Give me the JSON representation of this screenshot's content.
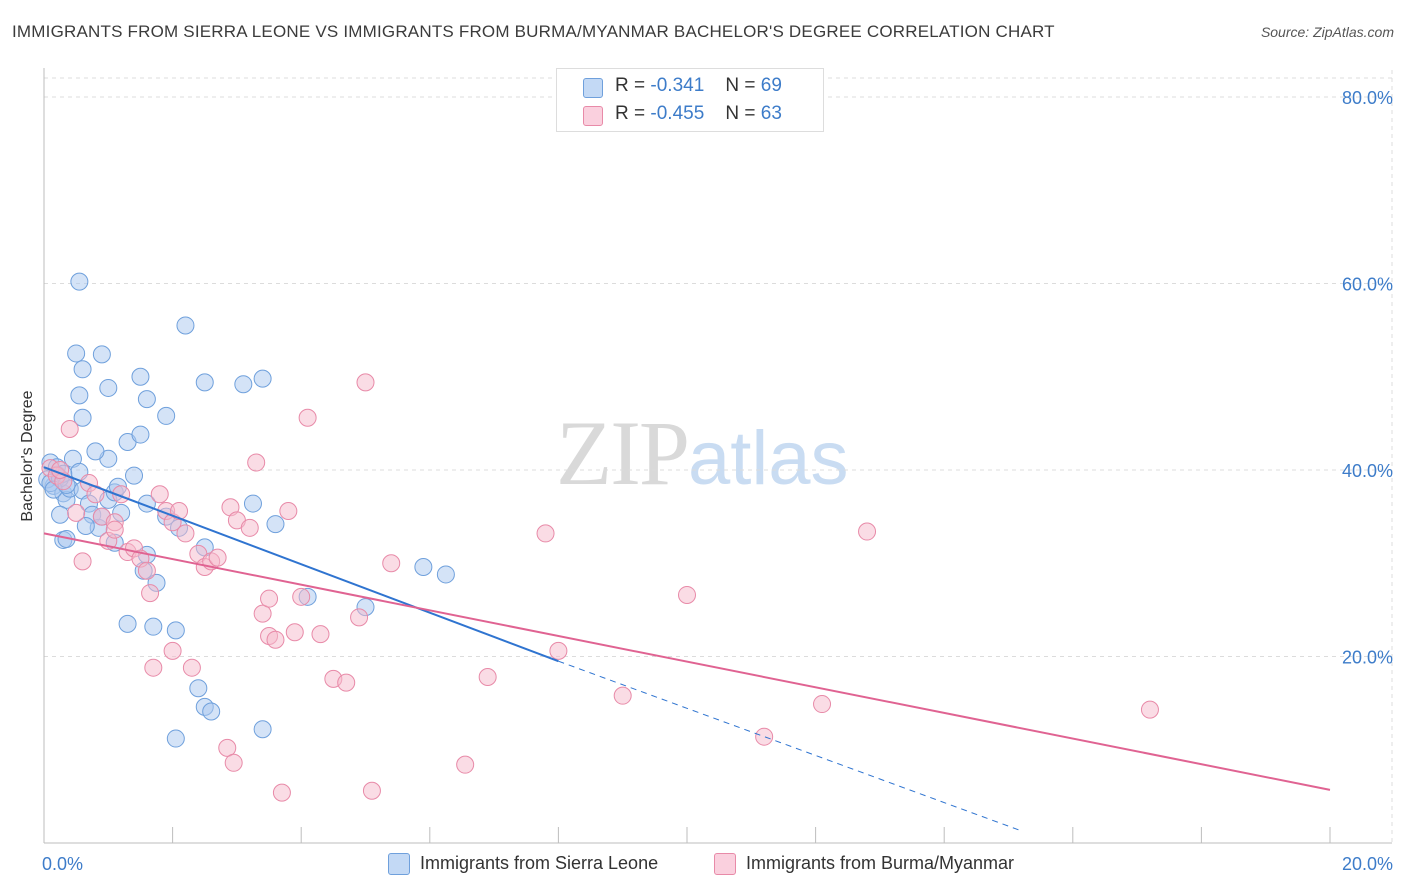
{
  "title": "IMMIGRANTS FROM SIERRA LEONE VS IMMIGRANTS FROM BURMA/MYANMAR BACHELOR'S DEGREE CORRELATION CHART",
  "source": "Source: ZipAtlas.com",
  "watermark": {
    "zip": "ZIP",
    "atlas": "atlas"
  },
  "legend": {
    "rows": [
      {
        "r_label": "R =",
        "r_value": "-0.341",
        "n_label": "N =",
        "n_value": "69",
        "color": "#a9c8f0"
      },
      {
        "r_label": "R =",
        "r_value": "-0.455",
        "n_label": "N =",
        "n_value": "63",
        "color": "#f6b9cc"
      }
    ]
  },
  "bottom_legend": [
    {
      "label": "Immigrants from Sierra Leone",
      "color": "#a9c8f0"
    },
    {
      "label": "Immigrants from Burma/Myanmar",
      "color": "#f6b9cc"
    }
  ],
  "chart_data": {
    "type": "scatter",
    "title": "IMMIGRANTS FROM SIERRA LEONE VS IMMIGRANTS FROM BURMA/MYANMAR BACHELOR'S DEGREE CORRELATION CHART",
    "xlabel": "",
    "ylabel": "Bachelor's Degree",
    "xlim": [
      0,
      20
    ],
    "ylim": [
      0,
      80
    ],
    "x_tick_labels": [
      "0.0%",
      "20.0%"
    ],
    "y_ticks": [
      20,
      40,
      60,
      80
    ],
    "y_tick_labels": [
      "20.0%",
      "40.0%",
      "60.0%",
      "80.0%"
    ],
    "grid": true,
    "series": [
      {
        "name": "Immigrants from Sierra Leone",
        "color": "#a9c8f0",
        "stroke": "#6fa0dc",
        "trend": {
          "x": [
            0.0,
            8.0
          ],
          "y": [
            40.3,
            19.5
          ],
          "dashed_to": [
            15.2,
            1.3
          ],
          "color": "#2f74d0"
        },
        "points": [
          [
            0.1,
            40.8
          ],
          [
            0.15,
            38.3
          ],
          [
            0.2,
            39.5
          ],
          [
            0.3,
            37.5
          ],
          [
            0.35,
            36.8
          ],
          [
            0.25,
            35.2
          ],
          [
            0.3,
            32.5
          ],
          [
            0.4,
            38.0
          ],
          [
            0.45,
            41.2
          ],
          [
            0.55,
            39.8
          ],
          [
            0.6,
            37.8
          ],
          [
            0.7,
            36.4
          ],
          [
            0.75,
            35.2
          ],
          [
            0.85,
            33.8
          ],
          [
            0.9,
            35.0
          ],
          [
            1.0,
            36.8
          ],
          [
            1.1,
            37.6
          ],
          [
            1.15,
            38.2
          ],
          [
            1.2,
            35.4
          ],
          [
            0.5,
            52.5
          ],
          [
            0.6,
            50.8
          ],
          [
            0.55,
            48.0
          ],
          [
            0.6,
            45.6
          ],
          [
            0.55,
            60.2
          ],
          [
            0.9,
            52.4
          ],
          [
            1.0,
            48.8
          ],
          [
            1.5,
            50.0
          ],
          [
            1.6,
            47.6
          ],
          [
            1.3,
            43.0
          ],
          [
            1.5,
            43.8
          ],
          [
            1.9,
            45.8
          ],
          [
            2.2,
            55.5
          ],
          [
            2.5,
            49.4
          ],
          [
            3.1,
            49.2
          ],
          [
            3.4,
            49.8
          ],
          [
            1.0,
            41.2
          ],
          [
            0.8,
            42.0
          ],
          [
            1.4,
            39.4
          ],
          [
            1.6,
            36.4
          ],
          [
            1.9,
            35.0
          ],
          [
            2.1,
            33.8
          ],
          [
            2.5,
            31.7
          ],
          [
            3.25,
            36.4
          ],
          [
            3.6,
            34.2
          ],
          [
            4.1,
            26.4
          ],
          [
            1.1,
            32.2
          ],
          [
            1.6,
            30.9
          ],
          [
            1.55,
            29.2
          ],
          [
            1.75,
            27.9
          ],
          [
            0.35,
            32.6
          ],
          [
            0.65,
            34.0
          ],
          [
            1.3,
            23.5
          ],
          [
            1.7,
            23.2
          ],
          [
            2.05,
            22.8
          ],
          [
            2.4,
            16.6
          ],
          [
            2.5,
            14.6
          ],
          [
            2.6,
            14.1
          ],
          [
            2.05,
            11.2
          ],
          [
            3.4,
            12.2
          ],
          [
            5.0,
            25.3
          ],
          [
            5.9,
            29.6
          ],
          [
            6.25,
            28.8
          ],
          [
            0.05,
            39.0
          ],
          [
            0.1,
            38.6
          ],
          [
            0.2,
            40.3
          ],
          [
            0.25,
            39.1
          ],
          [
            0.15,
            37.9
          ],
          [
            0.3,
            39.6
          ],
          [
            0.35,
            38.4
          ]
        ]
      },
      {
        "name": "Immigrants from Burma/Myanmar",
        "color": "#f6b9cc",
        "stroke": "#e88aa8",
        "trend": {
          "x": [
            0.0,
            20.0
          ],
          "y": [
            33.2,
            5.7
          ],
          "color": "#e06392"
        },
        "points": [
          [
            0.1,
            40.2
          ],
          [
            0.2,
            39.4
          ],
          [
            0.3,
            38.8
          ],
          [
            0.25,
            40.0
          ],
          [
            0.4,
            44.4
          ],
          [
            0.5,
            35.4
          ],
          [
            0.6,
            30.2
          ],
          [
            0.7,
            38.6
          ],
          [
            0.8,
            37.4
          ],
          [
            0.9,
            35.0
          ],
          [
            1.0,
            32.4
          ],
          [
            1.1,
            34.4
          ],
          [
            1.2,
            37.4
          ],
          [
            1.3,
            31.2
          ],
          [
            1.4,
            31.6
          ],
          [
            1.5,
            30.5
          ],
          [
            1.6,
            29.2
          ],
          [
            1.65,
            26.8
          ],
          [
            1.8,
            37.4
          ],
          [
            1.9,
            35.6
          ],
          [
            2.0,
            34.4
          ],
          [
            2.1,
            35.6
          ],
          [
            2.2,
            33.2
          ],
          [
            2.4,
            31.0
          ],
          [
            2.5,
            29.6
          ],
          [
            2.6,
            30.2
          ],
          [
            2.7,
            30.6
          ],
          [
            2.9,
            36.0
          ],
          [
            3.0,
            34.6
          ],
          [
            3.2,
            33.8
          ],
          [
            3.3,
            40.8
          ],
          [
            3.4,
            24.6
          ],
          [
            3.5,
            22.2
          ],
          [
            3.6,
            21.8
          ],
          [
            3.8,
            35.6
          ],
          [
            3.9,
            22.6
          ],
          [
            4.0,
            26.4
          ],
          [
            4.1,
            45.6
          ],
          [
            4.3,
            22.4
          ],
          [
            4.5,
            17.6
          ],
          [
            4.7,
            17.2
          ],
          [
            4.9,
            24.2
          ],
          [
            5.0,
            49.4
          ],
          [
            5.4,
            30.0
          ],
          [
            6.9,
            17.8
          ],
          [
            7.8,
            33.2
          ],
          [
            8.0,
            20.6
          ],
          [
            9.0,
            15.8
          ],
          [
            10.0,
            26.6
          ],
          [
            11.2,
            11.4
          ],
          [
            12.1,
            14.9
          ],
          [
            12.8,
            33.4
          ],
          [
            17.2,
            14.3
          ],
          [
            1.7,
            18.8
          ],
          [
            2.3,
            18.8
          ],
          [
            2.0,
            20.6
          ],
          [
            2.85,
            10.2
          ],
          [
            2.95,
            8.6
          ],
          [
            3.7,
            5.4
          ],
          [
            5.1,
            5.6
          ],
          [
            6.55,
            8.4
          ],
          [
            3.5,
            26.2
          ],
          [
            1.1,
            33.6
          ]
        ]
      }
    ]
  }
}
